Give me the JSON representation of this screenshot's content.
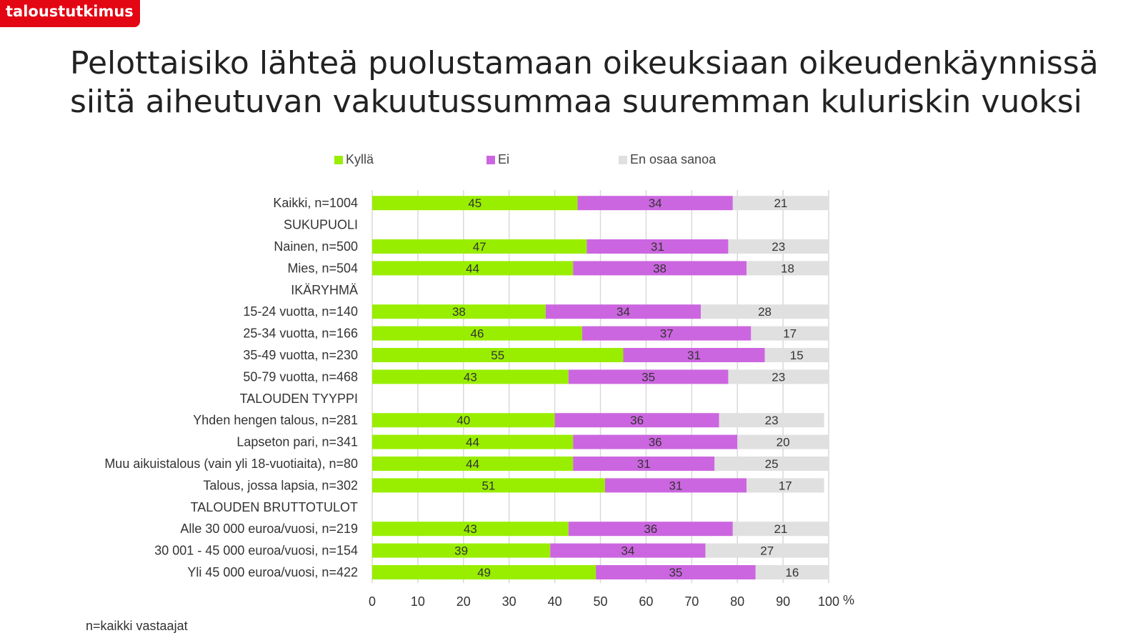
{
  "brand": {
    "label": "taloustutkimus"
  },
  "title": "Pelottaisiko lähteä puolustamaan oikeuksiaan oikeudenkäynnissä siitä aiheutuvan vakuutussummaa suuremman kuluriskin vuoksi",
  "footnote": "n=kaikki vastaajat",
  "colors": {
    "brand": "#e30613",
    "kylla": "#99ee00",
    "ei": "#cc66e0",
    "eos": "#e0e0e0",
    "grid": "#d9d9d9"
  },
  "chart_data": {
    "type": "bar",
    "orientation": "horizontal",
    "stacked": true,
    "legend_position": "top",
    "grid": true,
    "xlim": [
      0,
      100
    ],
    "xticks": [
      "0",
      "10",
      "20",
      "30",
      "40",
      "50",
      "60",
      "70",
      "80",
      "90",
      "100"
    ],
    "x_unit": "%",
    "series": [
      {
        "name": "Kyllä",
        "color": "#99ee00"
      },
      {
        "name": "Ei",
        "color": "#cc66e0"
      },
      {
        "name": "En osaa sanoa",
        "color": "#e0e0e0"
      }
    ],
    "rows": [
      {
        "label": "Kaikki, n=1004",
        "values": [
          45,
          34,
          21
        ]
      },
      {
        "label": "SUKUPUOLI",
        "values": null
      },
      {
        "label": "Nainen, n=500",
        "values": [
          47,
          31,
          23
        ]
      },
      {
        "label": "Mies, n=504",
        "values": [
          44,
          38,
          18
        ]
      },
      {
        "label": "IKÄRYHMÄ",
        "values": null
      },
      {
        "label": "15-24 vuotta, n=140",
        "values": [
          38,
          34,
          28
        ]
      },
      {
        "label": "25-34 vuotta, n=166",
        "values": [
          46,
          37,
          17
        ]
      },
      {
        "label": "35-49 vuotta, n=230",
        "values": [
          55,
          31,
          15
        ]
      },
      {
        "label": "50-79 vuotta, n=468",
        "values": [
          43,
          35,
          23
        ]
      },
      {
        "label": "TALOUDEN TYYPPI",
        "values": null
      },
      {
        "label": "Yhden hengen talous, n=281",
        "values": [
          40,
          36,
          23
        ]
      },
      {
        "label": "Lapseton pari, n=341",
        "values": [
          44,
          36,
          20
        ]
      },
      {
        "label": "Muu aikuistalous (vain yli 18-vuotiaita), n=80",
        "values": [
          44,
          31,
          25
        ]
      },
      {
        "label": "Talous, jossa lapsia, n=302",
        "values": [
          51,
          31,
          17
        ]
      },
      {
        "label": "TALOUDEN BRUTTOTULOT",
        "values": null
      },
      {
        "label": "Alle 30 000 euroa/vuosi, n=219",
        "values": [
          43,
          36,
          21
        ]
      },
      {
        "label": "30 001 - 45 000 euroa/vuosi, n=154",
        "values": [
          39,
          34,
          27
        ]
      },
      {
        "label": "Yli 45 000 euroa/vuosi, n=422",
        "values": [
          49,
          35,
          16
        ]
      }
    ]
  }
}
